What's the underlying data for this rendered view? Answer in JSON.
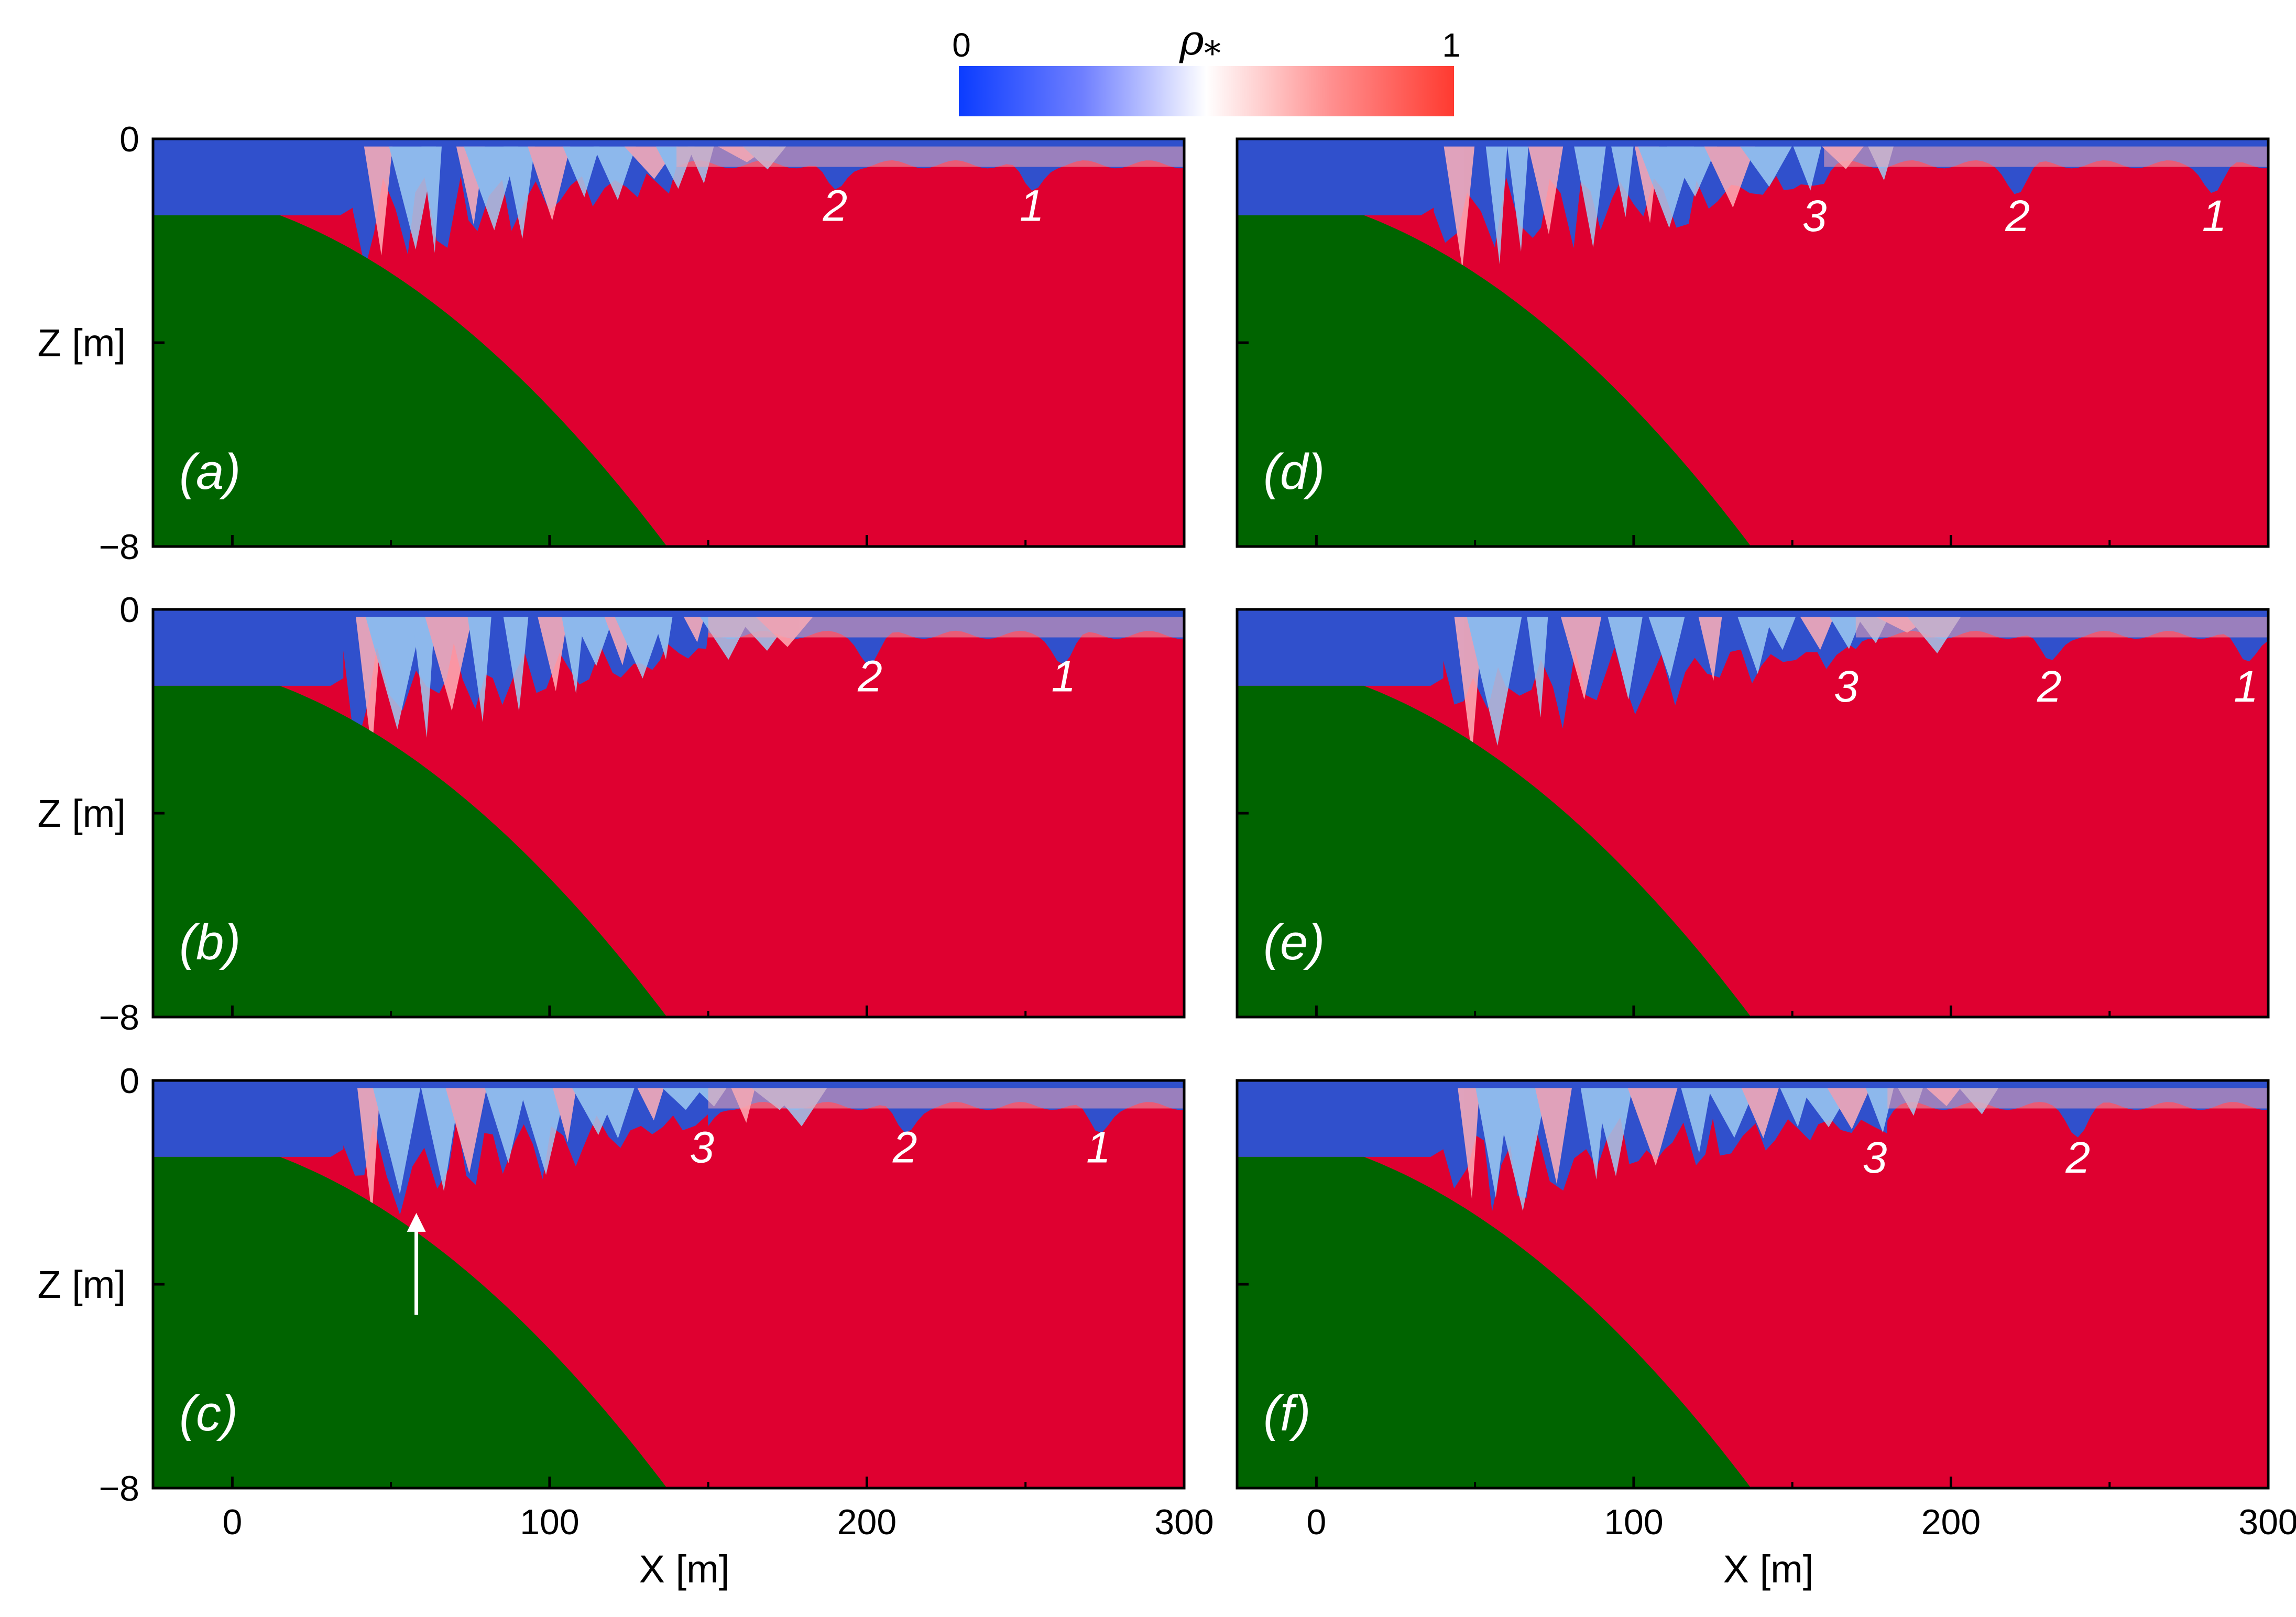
{
  "colors": {
    "water": "#df0030",
    "air": "#3050cc",
    "bed": "#006400",
    "foam": "#9ecbf2",
    "frame": "#000000",
    "annotation": "#ffffff",
    "colormap": [
      "#0b3cff",
      "#6f7fff",
      "#ffffff",
      "#ff9090",
      "#ff3a30"
    ]
  },
  "colorbar": {
    "symbol": "ρ",
    "subscript": "*",
    "min_label": "0",
    "max_label": "1"
  },
  "chart_data": {
    "type": "heatmap",
    "description_units": {
      "x": "m",
      "z": "m"
    },
    "xlim": [
      -25,
      300
    ],
    "zlim": [
      -8,
      0
    ],
    "xticks": [
      0,
      100,
      200,
      300
    ],
    "xtick_labels": [
      "0",
      "100",
      "200",
      "300"
    ],
    "zticks": [
      0,
      -4,
      -8
    ],
    "ztick_labels": [
      "0",
      "",
      "−8"
    ],
    "xlabel": "X [m]",
    "zlabel": "Z [m]",
    "mean_surface_depth": -0.5,
    "bed_profile": {
      "shape": "rounded slope",
      "start": [
        -25,
        -1.5
      ],
      "top_extent": 15,
      "toe": [
        137,
        -8
      ]
    },
    "panels": [
      {
        "label": "(a)",
        "show_zlabel": true,
        "show_ztick_labels": true,
        "show_xtick_labels": false,
        "show_xlabel": false,
        "breaking_start": 38,
        "breaking_end": 140,
        "crests": [
          {
            "label": "1",
            "x": 252,
            "z": -1.3
          },
          {
            "label": "2",
            "x": 190,
            "z": -1.3
          }
        ],
        "arrow": null
      },
      {
        "label": "(b)",
        "show_zlabel": true,
        "show_ztick_labels": true,
        "show_xtick_labels": false,
        "show_xlabel": false,
        "breaking_start": 35,
        "breaking_end": 150,
        "crests": [
          {
            "label": "1",
            "x": 262,
            "z": -1.3
          },
          {
            "label": "2",
            "x": 201,
            "z": -1.3
          }
        ],
        "arrow": null
      },
      {
        "label": "(c)",
        "show_zlabel": true,
        "show_ztick_labels": true,
        "show_xtick_labels": true,
        "show_xlabel": true,
        "breaking_start": 35,
        "breaking_end": 150,
        "crests": [
          {
            "label": "1",
            "x": 273,
            "z": -1.3
          },
          {
            "label": "2",
            "x": 212,
            "z": -1.3
          },
          {
            "label": "3",
            "x": 148,
            "z": -1.3
          }
        ],
        "arrow": {
          "x": 58,
          "z_from": -4.6,
          "z_to": -2.6
        }
      },
      {
        "label": "(d)",
        "show_zlabel": false,
        "show_ztick_labels": false,
        "show_xtick_labels": false,
        "show_xlabel": false,
        "breaking_start": 37,
        "breaking_end": 160,
        "crests": [
          {
            "label": "1",
            "x": 283,
            "z": -1.5
          },
          {
            "label": "2",
            "x": 221,
            "z": -1.5
          },
          {
            "label": "3",
            "x": 157,
            "z": -1.5
          }
        ],
        "arrow": null
      },
      {
        "label": "(e)",
        "show_zlabel": false,
        "show_ztick_labels": false,
        "show_xtick_labels": false,
        "show_xlabel": false,
        "breaking_start": 40,
        "breaking_end": 170,
        "crests": [
          {
            "label": "1",
            "x": 293,
            "z": -1.5
          },
          {
            "label": "2",
            "x": 231,
            "z": -1.5
          },
          {
            "label": "3",
            "x": 167,
            "z": -1.5
          }
        ],
        "arrow": null
      },
      {
        "label": "(f)",
        "show_zlabel": false,
        "show_ztick_labels": false,
        "show_xtick_labels": true,
        "show_xlabel": true,
        "breaking_start": 40,
        "breaking_end": 180,
        "crests": [
          {
            "label": "2",
            "x": 240,
            "z": -1.5
          },
          {
            "label": "3",
            "x": 176,
            "z": -1.5
          }
        ],
        "arrow": null
      }
    ]
  }
}
